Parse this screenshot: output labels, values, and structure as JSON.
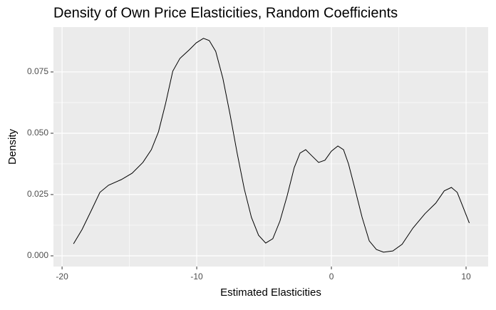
{
  "chart_data": {
    "type": "line",
    "title": "Density of Own Price Elasticities, Random Coefficients",
    "x_label": "Estimated Elasticities",
    "y_label": "Density",
    "x": [
      -19.15,
      -18.51,
      -17.82,
      -17.19,
      -16.55,
      -15.6,
      -14.8,
      -14.0,
      -13.37,
      -12.84,
      -12.31,
      -11.78,
      -11.25,
      -10.56,
      -10.03,
      -9.5,
      -9.07,
      -8.59,
      -8.06,
      -7.53,
      -7.0,
      -6.47,
      -5.94,
      -5.41,
      -4.88,
      -4.35,
      -3.82,
      -3.29,
      -2.76,
      -2.33,
      -1.91,
      -1.49,
      -0.95,
      -0.48,
      0.0,
      0.48,
      0.9,
      1.27,
      1.75,
      2.28,
      2.81,
      3.34,
      3.87,
      4.56,
      5.25,
      6.05,
      6.95,
      7.75,
      8.38,
      8.91,
      9.34,
      9.76,
      10.24
    ],
    "values": [
      0.0049,
      0.0108,
      0.0186,
      0.0259,
      0.0288,
      0.0311,
      0.0337,
      0.0381,
      0.0433,
      0.0506,
      0.0622,
      0.0753,
      0.0805,
      0.084,
      0.0869,
      0.0887,
      0.0878,
      0.0834,
      0.0724,
      0.0578,
      0.0419,
      0.0273,
      0.0157,
      0.0084,
      0.0052,
      0.007,
      0.0142,
      0.0244,
      0.036,
      0.0419,
      0.0433,
      0.041,
      0.0381,
      0.039,
      0.0427,
      0.0448,
      0.0433,
      0.0375,
      0.0273,
      0.0157,
      0.0061,
      0.0026,
      0.0015,
      0.002,
      0.0047,
      0.0113,
      0.0172,
      0.0215,
      0.0265,
      0.0279,
      0.0259,
      0.0201,
      0.0134
    ],
    "color": "#000000",
    "xlim": [
      -20.64,
      11.64
    ],
    "xticks": [
      -20,
      -10,
      0,
      10
    ],
    "ylim": [
      -0.00436,
      0.0933
    ],
    "yticks": [
      {
        "value": 0,
        "label": "0.000"
      },
      {
        "value": 0.025,
        "label": "0.025"
      },
      {
        "value": 0.05,
        "label": "0.050"
      },
      {
        "value": 0.075,
        "label": "0.075"
      }
    ],
    "grid": true
  }
}
